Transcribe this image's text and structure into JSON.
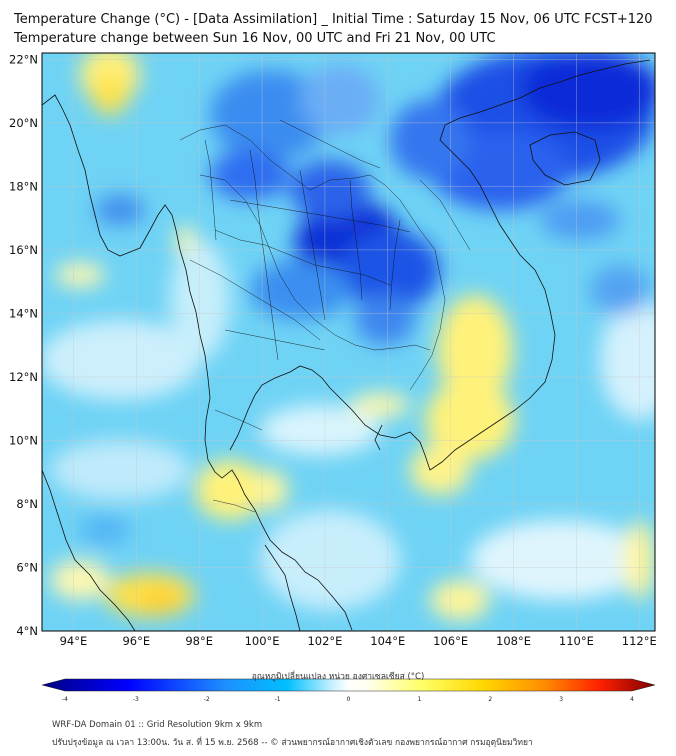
{
  "title": {
    "line1": "Temperature Change (°C) - [Data Assimilation] _ Initial Time : Saturday 15 Nov, 06 UTC FCST+120",
    "line2": "Temperature change between Sun 16 Nov, 00 UTC and Fri 21 Nov, 00 UTC"
  },
  "map": {
    "lat_labels": [
      "22°N",
      "20°N",
      "18°N",
      "16°N",
      "14°N",
      "12°N",
      "10°N",
      "8°N",
      "6°N",
      "4°N"
    ],
    "lon_labels": [
      "94°E",
      "96°E",
      "98°E",
      "100°E",
      "102°E",
      "104°E",
      "106°E",
      "108°E",
      "110°E",
      "112°E"
    ],
    "lat_range": [
      4,
      22.2
    ],
    "lon_range": [
      93,
      112.5
    ]
  },
  "colorbar": {
    "label": "อุณหภูมิเปลี่ยนแปลง หน่วย องศาเซลเซียส (°C)",
    "min": -4,
    "max": 4,
    "ticks": [
      "-4",
      "-3",
      "-2",
      "-1",
      "0",
      "1",
      "2",
      "3",
      "4"
    ],
    "colors": {
      "cold_extreme": "#000080",
      "cold": "#0000ff",
      "cool": "#00bfff",
      "neutral": "#ffffff",
      "warm": "#ffff66",
      "hot": "#ff4000",
      "hot_extreme": "#800000"
    }
  },
  "footer": {
    "line1": "WRF-DA Domain 01 :: Grid Resolution 9km x 9km",
    "line2": "ปรับปรุงข้อมูล ณ เวลา 13:00น. วัน ส. ที่ 15 พ.ย. 2568 -- © ส่วนพยากรณ์อากาศเชิงตัวเลข กองพยากรณ์อากาศ กรมอุตุนิยมวิทยา"
  }
}
